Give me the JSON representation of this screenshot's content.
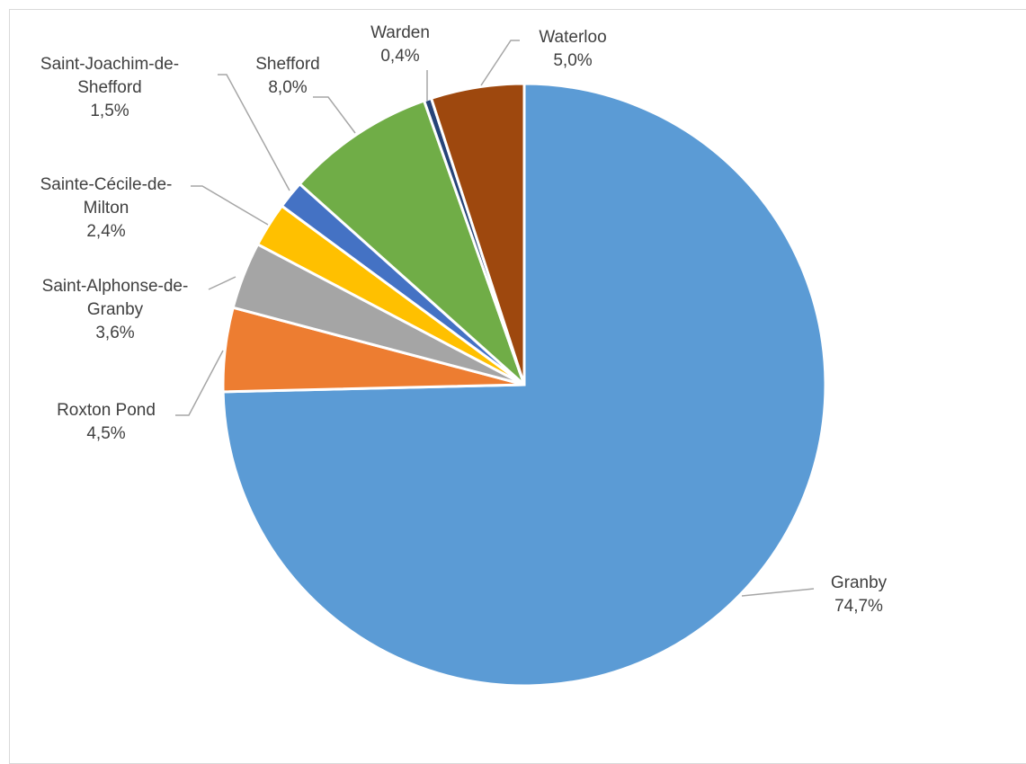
{
  "chart_data": {
    "type": "pie",
    "categories": [
      "Granby",
      "Roxton Pond",
      "Saint-Alphonse-de-Granby",
      "Sainte-Cécile-de-Milton",
      "Saint-Joachim-de-Shefford",
      "Shefford",
      "Warden",
      "Waterloo"
    ],
    "values": [
      74.7,
      4.5,
      3.6,
      2.4,
      1.5,
      8.0,
      0.4,
      5.0
    ],
    "value_labels": [
      "74,7%",
      "4,5%",
      "3,6%",
      "2,4%",
      "1,5%",
      "8,0%",
      "0,4%",
      "5,0%"
    ],
    "colors": [
      "#5b9bd5",
      "#ed7d31",
      "#a5a5a5",
      "#ffc000",
      "#4472c4",
      "#70ad47",
      "#264478",
      "#9e480e"
    ]
  }
}
